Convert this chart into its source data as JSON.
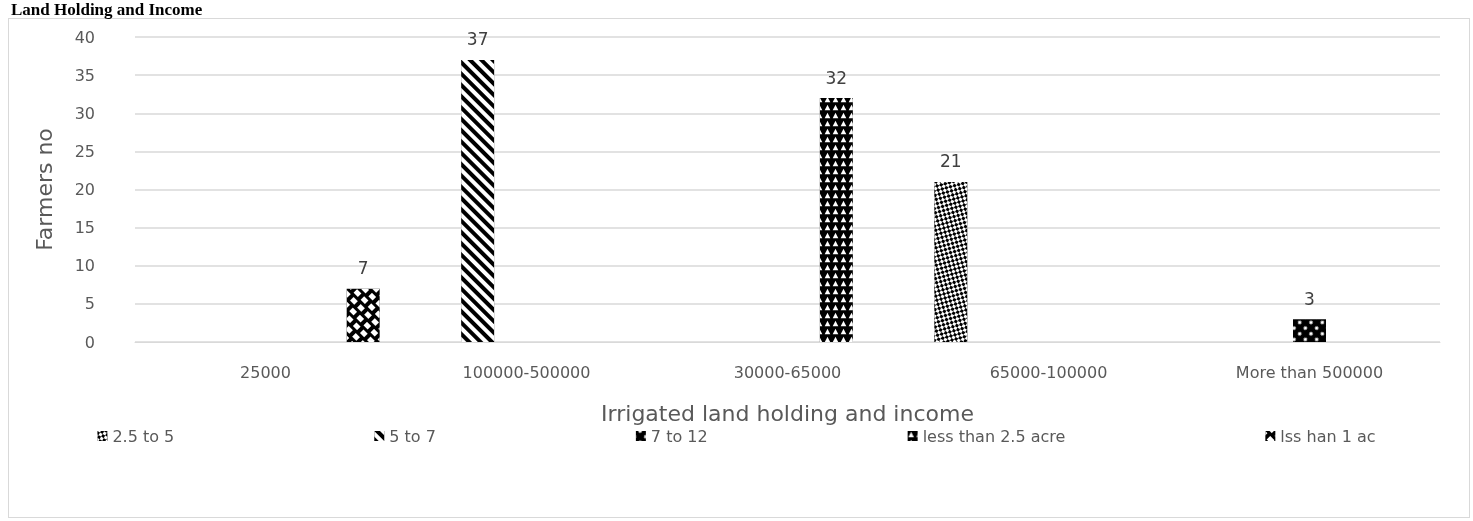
{
  "chart_data": {
    "type": "bar",
    "title": "Land Holding and Income",
    "xlabel": "Irrigated land holding and income",
    "ylabel": "Farmers no",
    "categories": [
      "25000",
      "100000-500000",
      "30000-65000",
      "65000-100000",
      "More than 500000"
    ],
    "series": [
      {
        "name": "2.5 to 5",
        "color": "#000000",
        "values": [
          null,
          null,
          null,
          21,
          null
        ]
      },
      {
        "name": "5 to 7",
        "color": "#000000",
        "values": [
          null,
          37,
          null,
          null,
          null
        ]
      },
      {
        "name": "7 to 12",
        "color": "#000000",
        "values": [
          null,
          null,
          null,
          null,
          3
        ]
      },
      {
        "name": "less than 2.5 acre",
        "color": "#000000",
        "values": [
          null,
          null,
          32,
          null,
          null
        ]
      },
      {
        "name": "lss han 1 ac",
        "color": "#000000",
        "values": [
          7,
          null,
          null,
          null,
          null
        ]
      }
    ],
    "ylim": [
      0,
      40
    ],
    "yticks": [
      0,
      5,
      10,
      15,
      20,
      25,
      30,
      35,
      40
    ],
    "grid": "y",
    "legend": "bottom",
    "data_labels": true
  }
}
